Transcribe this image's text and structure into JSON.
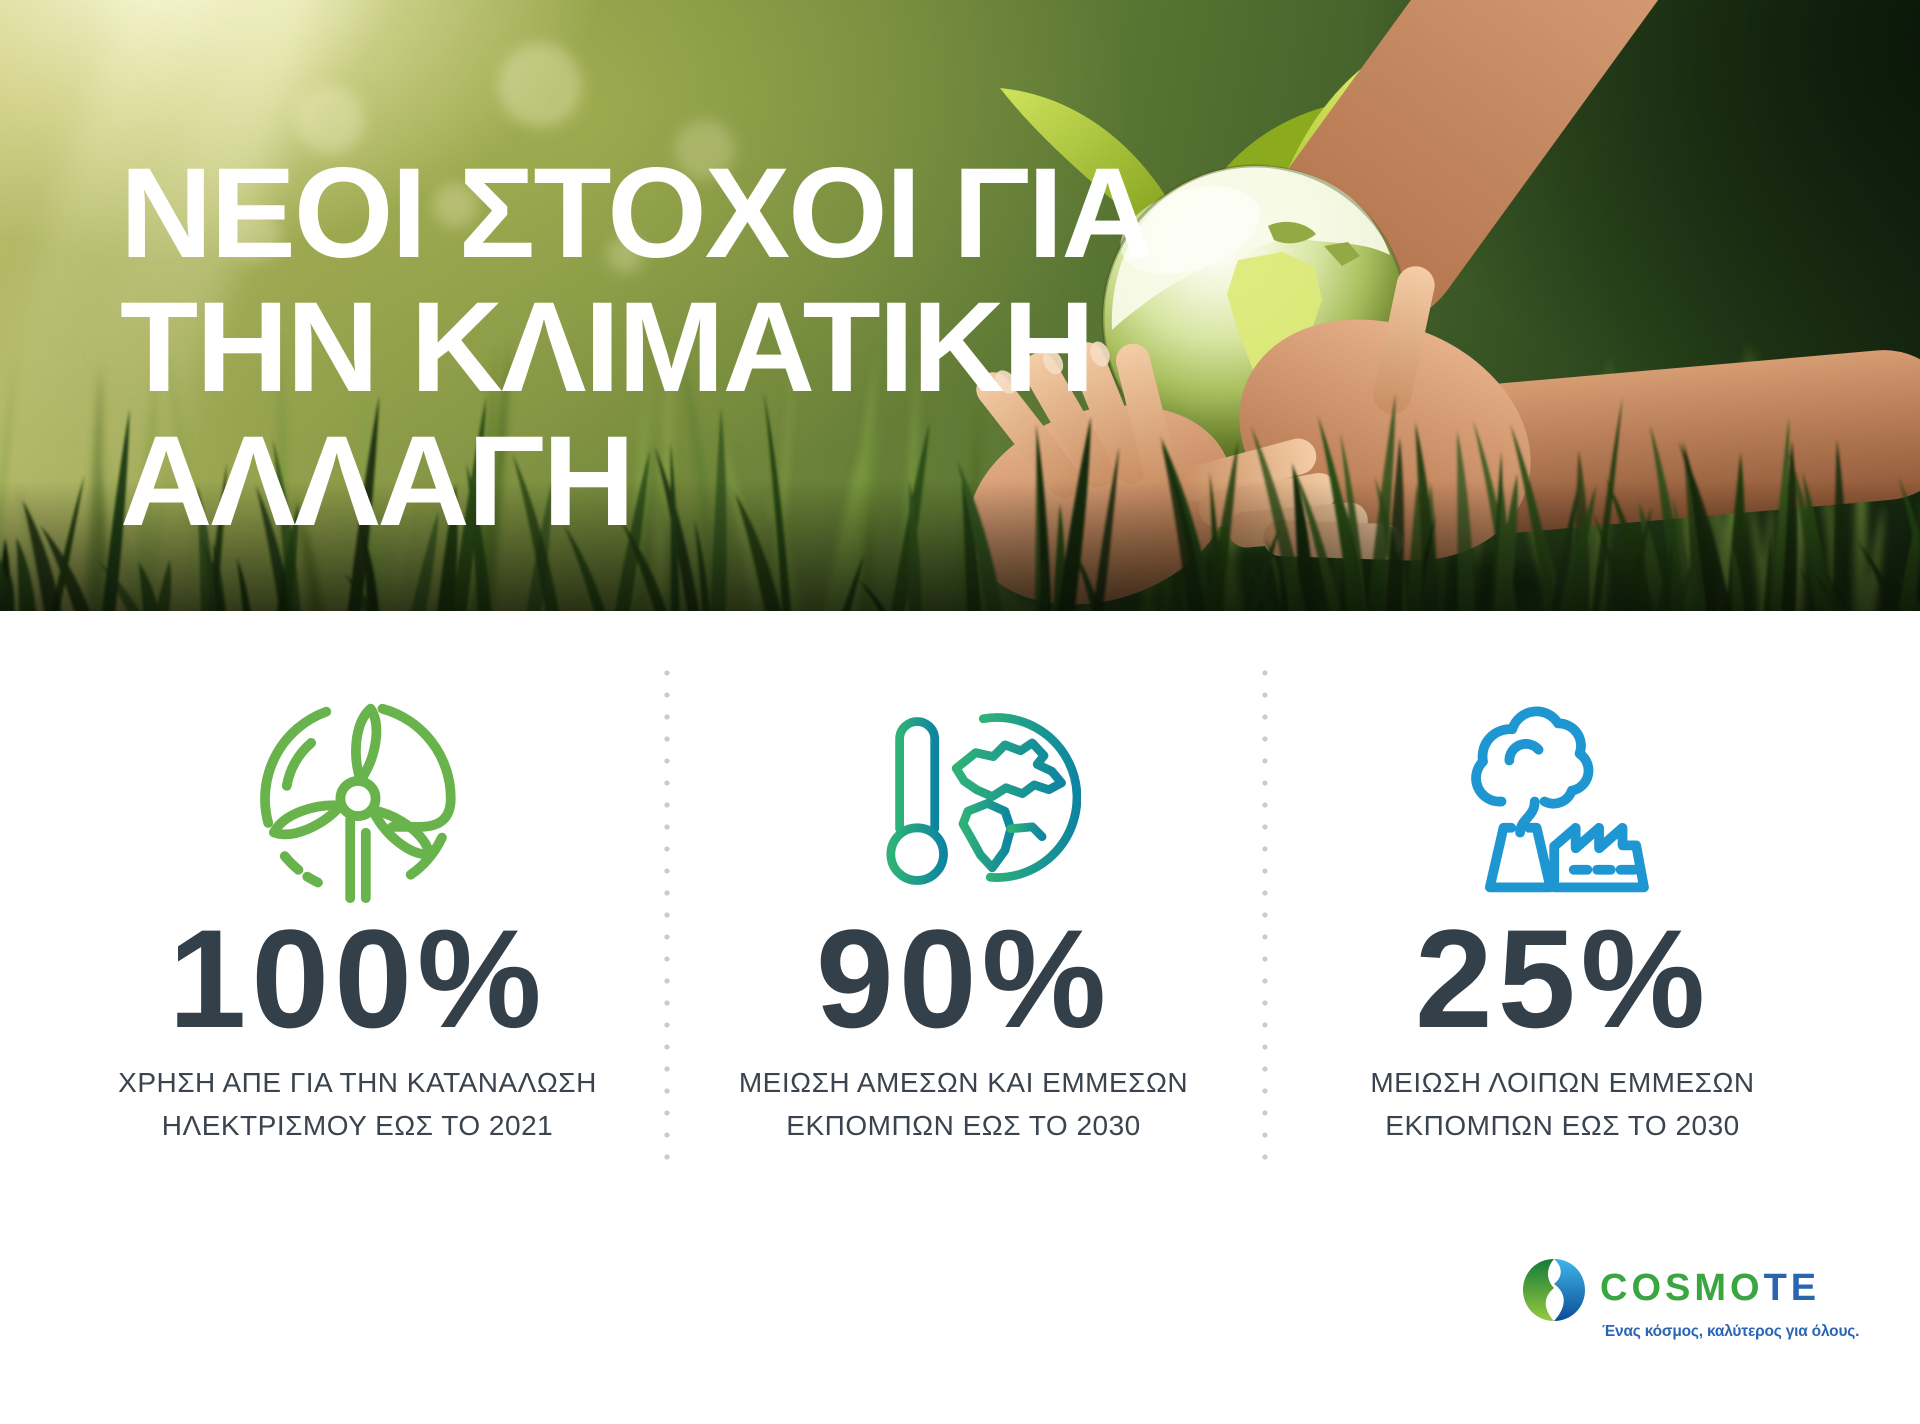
{
  "hero": {
    "title_lines": [
      "ΝΕΟΙ ΣΤΟΧΟΙ ΓΙΑ",
      "ΤΗΝ ΚΛΙΜΑΤΙΚΗ",
      "ΑΛΛΑΓΗ"
    ]
  },
  "stats": [
    {
      "icon": "wind-turbine-icon",
      "accent_color": "#68b34b",
      "value": "100%",
      "label_lines": [
        "ΧΡΗΣΗ ΑΠΕ ΓΙΑ ΤΗΝ ΚΑΤΑΝΑΛΩΣΗ",
        "ΗΛΕΚΤΡΙΣΜΟΥ ΕΩΣ ΤΟ 2021"
      ]
    },
    {
      "icon": "thermometer-globe-icon",
      "accent_color_start": "#2fb277",
      "accent_color_end": "#0e85a0",
      "value": "90%",
      "label_lines": [
        "ΜΕΙΩΣΗ ΑΜΕΣΩΝ ΚΑΙ ΕΜΜΕΣΩΝ",
        "ΕΚΠΟΜΠΩΝ ΕΩΣ ΤΟ 2030"
      ]
    },
    {
      "icon": "factory-emissions-icon",
      "accent_color": "#1e96d2",
      "value": "25%",
      "label_lines": [
        "ΜΕΙΩΣΗ ΛΟΙΠΩΝ ΕΜΜΕΣΩΝ",
        "ΕΚΠΟΜΠΩΝ ΕΩΣ ΤΟ 2030"
      ]
    }
  ],
  "footer": {
    "logo_icon": "cosmote-sphere-icon",
    "wordmark_green": "COSMO",
    "wordmark_blue": "TE",
    "tagline": "Ένας κόσμος, καλύτερος για όλους."
  },
  "colors": {
    "stat_number": "#333f49",
    "stat_label": "#3b444e",
    "divider_dot": "#c9ccce",
    "logo_green": "#3aa63f",
    "logo_blue": "#2a65b2",
    "hero_text": "#ffffff"
  }
}
